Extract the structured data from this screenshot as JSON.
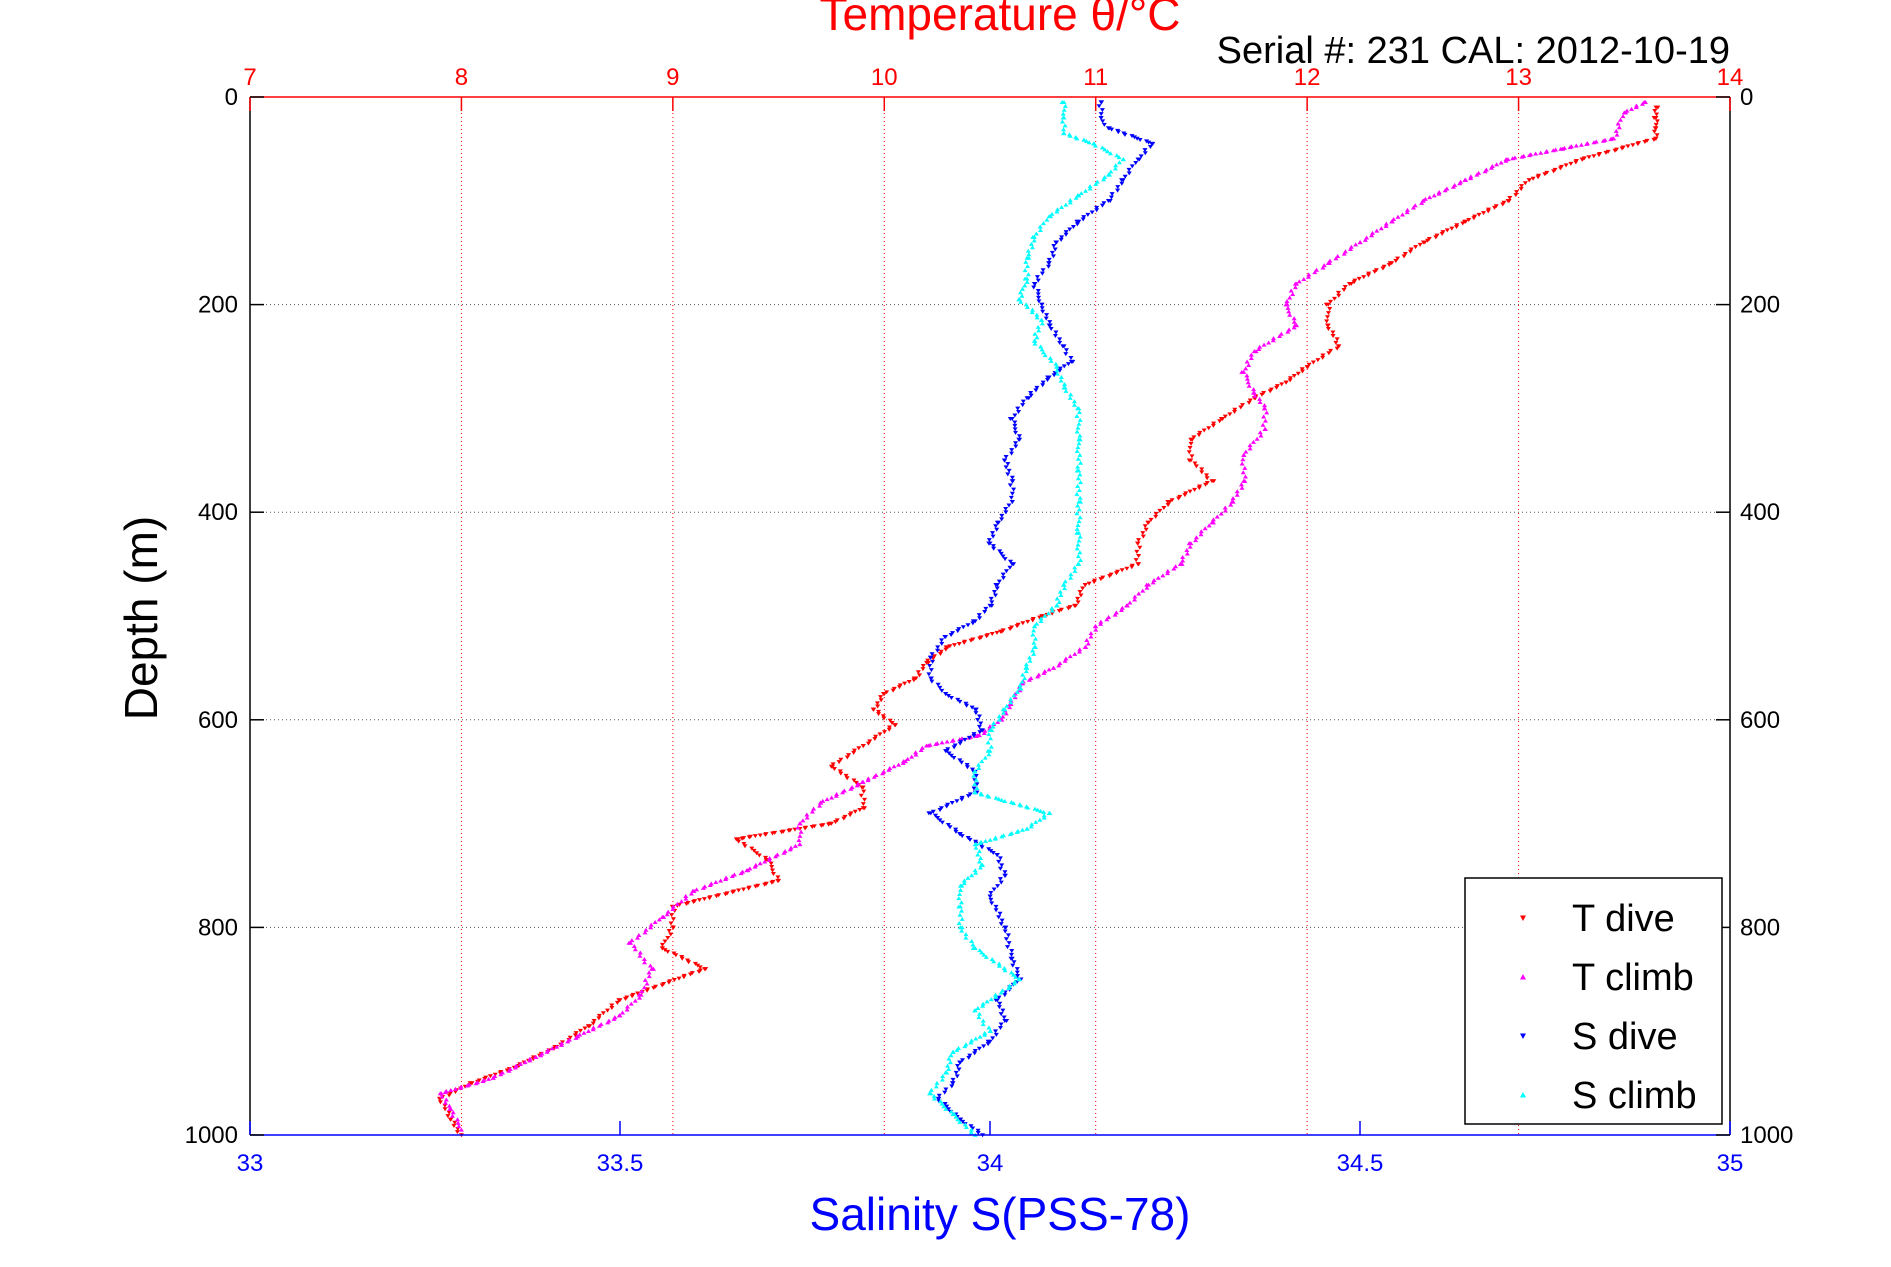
{
  "chart_data": {
    "type": "scatter",
    "title": "Temperature θ/°C",
    "subtitle": "Serial #: 231   CAL: 2012-10-19",
    "xlabel": "Salinity S(PSS-78)",
    "ylabel": "Depth (m)",
    "x_bottom": {
      "label": "Salinity S(PSS-78)",
      "range": [
        33,
        35
      ],
      "ticks": [
        33,
        33.5,
        34,
        34.5,
        35
      ],
      "tick_labels": [
        "33",
        "33.5",
        "34",
        "34.5",
        "35"
      ],
      "color": "#0000ff"
    },
    "x_top": {
      "label": "Temperature θ/°C",
      "range": [
        7,
        14
      ],
      "ticks": [
        7,
        8,
        9,
        10,
        11,
        12,
        13,
        14
      ],
      "tick_labels": [
        "7",
        "8",
        "9",
        "10",
        "11",
        "12",
        "13",
        "14"
      ],
      "color": "#ff0000"
    },
    "y": {
      "label": "Depth (m)",
      "range": [
        0,
        1000
      ],
      "reversed": true,
      "ticks": [
        0,
        200,
        400,
        600,
        800,
        1000
      ],
      "tick_labels": [
        "0",
        "200",
        "400",
        "600",
        "800",
        "1000"
      ]
    },
    "grid": true,
    "legend_position": "bottom-right",
    "series": [
      {
        "name": "T dive",
        "axis": "x_top",
        "color": "#ff0000",
        "marker": "triangle-down",
        "points": [
          [
            13.65,
            10
          ],
          [
            13.65,
            20
          ],
          [
            13.65,
            30
          ],
          [
            13.65,
            40
          ],
          [
            13.3,
            60
          ],
          [
            13.05,
            80
          ],
          [
            12.95,
            100
          ],
          [
            12.75,
            120
          ],
          [
            12.55,
            140
          ],
          [
            12.4,
            160
          ],
          [
            12.2,
            180
          ],
          [
            12.1,
            200
          ],
          [
            12.1,
            220
          ],
          [
            12.15,
            240
          ],
          [
            12.0,
            260
          ],
          [
            11.9,
            275
          ],
          [
            11.75,
            290
          ],
          [
            11.6,
            310
          ],
          [
            11.45,
            330
          ],
          [
            11.45,
            350
          ],
          [
            11.55,
            370
          ],
          [
            11.35,
            390
          ],
          [
            11.25,
            410
          ],
          [
            11.2,
            430
          ],
          [
            11.2,
            450
          ],
          [
            10.95,
            470
          ],
          [
            10.9,
            490
          ],
          [
            10.75,
            500
          ],
          [
            10.55,
            515
          ],
          [
            10.3,
            530
          ],
          [
            10.2,
            545
          ],
          [
            10.15,
            560
          ],
          [
            10.0,
            575
          ],
          [
            9.95,
            590
          ],
          [
            10.05,
            605
          ],
          [
            9.9,
            625
          ],
          [
            9.75,
            645
          ],
          [
            9.9,
            665
          ],
          [
            9.9,
            685
          ],
          [
            9.75,
            700
          ],
          [
            9.3,
            715
          ],
          [
            9.45,
            735
          ],
          [
            9.5,
            755
          ],
          [
            9.0,
            780
          ],
          [
            9.0,
            800
          ],
          [
            8.95,
            820
          ],
          [
            9.15,
            840
          ],
          [
            8.75,
            870
          ],
          [
            8.6,
            895
          ],
          [
            8.45,
            915
          ],
          [
            8.25,
            935
          ],
          [
            8.05,
            950
          ],
          [
            7.9,
            965
          ],
          [
            7.95,
            985
          ],
          [
            8.0,
            1000
          ]
        ]
      },
      {
        "name": "T climb",
        "axis": "x_top",
        "color": "#ff00ff",
        "marker": "triangle-up",
        "points": [
          [
            13.6,
            5
          ],
          [
            13.5,
            15
          ],
          [
            13.45,
            40
          ],
          [
            13.2,
            50
          ],
          [
            12.95,
            60
          ],
          [
            12.75,
            80
          ],
          [
            12.55,
            100
          ],
          [
            12.4,
            120
          ],
          [
            12.25,
            140
          ],
          [
            12.1,
            160
          ],
          [
            11.95,
            180
          ],
          [
            11.9,
            200
          ],
          [
            11.95,
            220
          ],
          [
            11.75,
            245
          ],
          [
            11.7,
            265
          ],
          [
            11.75,
            285
          ],
          [
            11.8,
            300
          ],
          [
            11.8,
            320
          ],
          [
            11.7,
            345
          ],
          [
            11.7,
            370
          ],
          [
            11.65,
            390
          ],
          [
            11.55,
            410
          ],
          [
            11.45,
            430
          ],
          [
            11.4,
            450
          ],
          [
            11.25,
            470
          ],
          [
            11.15,
            490
          ],
          [
            11.0,
            510
          ],
          [
            10.95,
            530
          ],
          [
            10.8,
            550
          ],
          [
            10.65,
            565
          ],
          [
            10.6,
            585
          ],
          [
            10.55,
            600
          ],
          [
            10.45,
            615
          ],
          [
            10.2,
            625
          ],
          [
            10.1,
            640
          ],
          [
            9.9,
            660
          ],
          [
            9.7,
            680
          ],
          [
            9.6,
            700
          ],
          [
            9.6,
            720
          ],
          [
            9.35,
            745
          ],
          [
            9.1,
            765
          ],
          [
            8.95,
            790
          ],
          [
            8.8,
            815
          ],
          [
            8.9,
            840
          ],
          [
            8.85,
            865
          ],
          [
            8.75,
            885
          ],
          [
            8.55,
            905
          ],
          [
            8.35,
            925
          ],
          [
            8.15,
            945
          ],
          [
            7.9,
            960
          ],
          [
            7.95,
            975
          ],
          [
            8.0,
            995
          ]
        ]
      },
      {
        "name": "S dive",
        "axis": "x_bottom",
        "color": "#0000ff",
        "marker": "triangle-down",
        "points": [
          [
            34.15,
            5
          ],
          [
            34.15,
            20
          ],
          [
            34.16,
            30
          ],
          [
            34.22,
            45
          ],
          [
            34.2,
            60
          ],
          [
            34.18,
            80
          ],
          [
            34.16,
            100
          ],
          [
            34.12,
            120
          ],
          [
            34.09,
            140
          ],
          [
            34.08,
            160
          ],
          [
            34.06,
            180
          ],
          [
            34.07,
            200
          ],
          [
            34.08,
            220
          ],
          [
            34.1,
            240
          ],
          [
            34.11,
            255
          ],
          [
            34.08,
            270
          ],
          [
            34.05,
            290
          ],
          [
            34.03,
            310
          ],
          [
            34.04,
            330
          ],
          [
            34.02,
            350
          ],
          [
            34.03,
            370
          ],
          [
            34.03,
            390
          ],
          [
            34.01,
            410
          ],
          [
            34.0,
            430
          ],
          [
            34.03,
            450
          ],
          [
            34.01,
            470
          ],
          [
            34.0,
            490
          ],
          [
            33.98,
            505
          ],
          [
            33.94,
            520
          ],
          [
            33.92,
            540
          ],
          [
            33.92,
            560
          ],
          [
            33.94,
            575
          ],
          [
            33.98,
            590
          ],
          [
            33.99,
            610
          ],
          [
            33.94,
            630
          ],
          [
            33.98,
            650
          ],
          [
            33.98,
            670
          ],
          [
            33.92,
            690
          ],
          [
            33.96,
            710
          ],
          [
            34.01,
            730
          ],
          [
            34.02,
            750
          ],
          [
            34.0,
            770
          ],
          [
            34.02,
            800
          ],
          [
            34.03,
            830
          ],
          [
            34.04,
            850
          ],
          [
            34.01,
            870
          ],
          [
            34.02,
            890
          ],
          [
            34.0,
            910
          ],
          [
            33.96,
            930
          ],
          [
            33.95,
            950
          ],
          [
            33.93,
            965
          ],
          [
            33.96,
            985
          ],
          [
            33.99,
            1000
          ]
        ]
      },
      {
        "name": "S climb",
        "axis": "x_bottom",
        "color": "#00ffff",
        "marker": "triangle-up",
        "points": [
          [
            34.1,
            5
          ],
          [
            34.1,
            20
          ],
          [
            34.1,
            35
          ],
          [
            34.14,
            45
          ],
          [
            34.18,
            60
          ],
          [
            34.16,
            75
          ],
          [
            34.12,
            95
          ],
          [
            34.08,
            115
          ],
          [
            34.06,
            135
          ],
          [
            34.05,
            155
          ],
          [
            34.05,
            175
          ],
          [
            34.04,
            195
          ],
          [
            34.07,
            215
          ],
          [
            34.06,
            235
          ],
          [
            34.09,
            260
          ],
          [
            34.1,
            280
          ],
          [
            34.12,
            300
          ],
          [
            34.12,
            330
          ],
          [
            34.12,
            360
          ],
          [
            34.12,
            390
          ],
          [
            34.12,
            420
          ],
          [
            34.12,
            450
          ],
          [
            34.1,
            470
          ],
          [
            34.09,
            490
          ],
          [
            34.06,
            510
          ],
          [
            34.06,
            530
          ],
          [
            34.05,
            550
          ],
          [
            34.04,
            570
          ],
          [
            34.02,
            590
          ],
          [
            34.0,
            610
          ],
          [
            34.0,
            630
          ],
          [
            33.98,
            650
          ],
          [
            33.98,
            670
          ],
          [
            34.08,
            690
          ],
          [
            34.05,
            705
          ],
          [
            33.98,
            720
          ],
          [
            33.99,
            740
          ],
          [
            33.96,
            760
          ],
          [
            33.96,
            780
          ],
          [
            33.96,
            800
          ],
          [
            33.98,
            820
          ],
          [
            34.04,
            850
          ],
          [
            33.98,
            880
          ],
          [
            34.0,
            900
          ],
          [
            33.95,
            920
          ],
          [
            33.94,
            940
          ],
          [
            33.92,
            960
          ],
          [
            33.95,
            980
          ],
          [
            33.98,
            1000
          ]
        ]
      }
    ]
  }
}
